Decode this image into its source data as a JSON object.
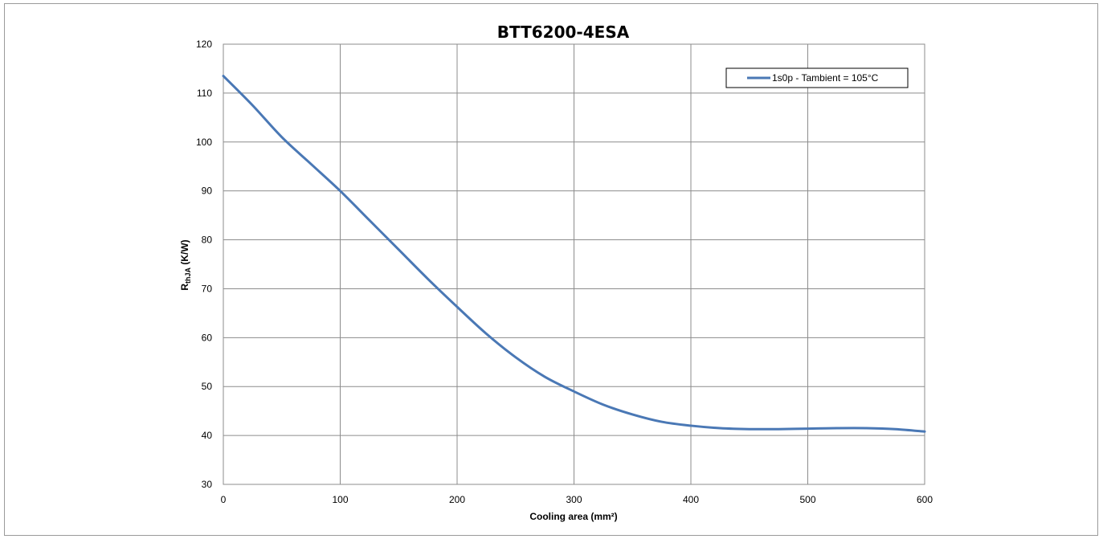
{
  "chart_data": {
    "type": "line",
    "title": "BTT6200-4ESA",
    "xlabel": "Cooling area (mm²)",
    "ylabel": {
      "main": "R",
      "subscript": "thJA",
      "unit": " (K/W)"
    },
    "xlim": [
      0,
      600
    ],
    "ylim": [
      30,
      120
    ],
    "xticks": [
      "0",
      "100",
      "200",
      "300",
      "400",
      "500",
      "600"
    ],
    "yticks": [
      "30",
      "40",
      "50",
      "60",
      "70",
      "80",
      "90",
      "100",
      "110",
      "120"
    ],
    "grid": true,
    "legend_position": "top-right",
    "series": [
      {
        "name": "1s0p - Tambient = 105°C",
        "color": "#4a78b5",
        "x": [
          0,
          25,
          50,
          75,
          100,
          125,
          150,
          175,
          200,
          225,
          250,
          275,
          300,
          325,
          350,
          375,
          400,
          425,
          450,
          475,
          500,
          525,
          550,
          575,
          600
        ],
        "y": [
          113.5,
          107.5,
          101.0,
          95.5,
          90.0,
          84.0,
          78.0,
          72.0,
          66.3,
          60.8,
          56.0,
          52.0,
          49.0,
          46.3,
          44.3,
          42.8,
          42.0,
          41.5,
          41.3,
          41.3,
          41.4,
          41.5,
          41.5,
          41.3,
          40.8
        ]
      }
    ]
  }
}
